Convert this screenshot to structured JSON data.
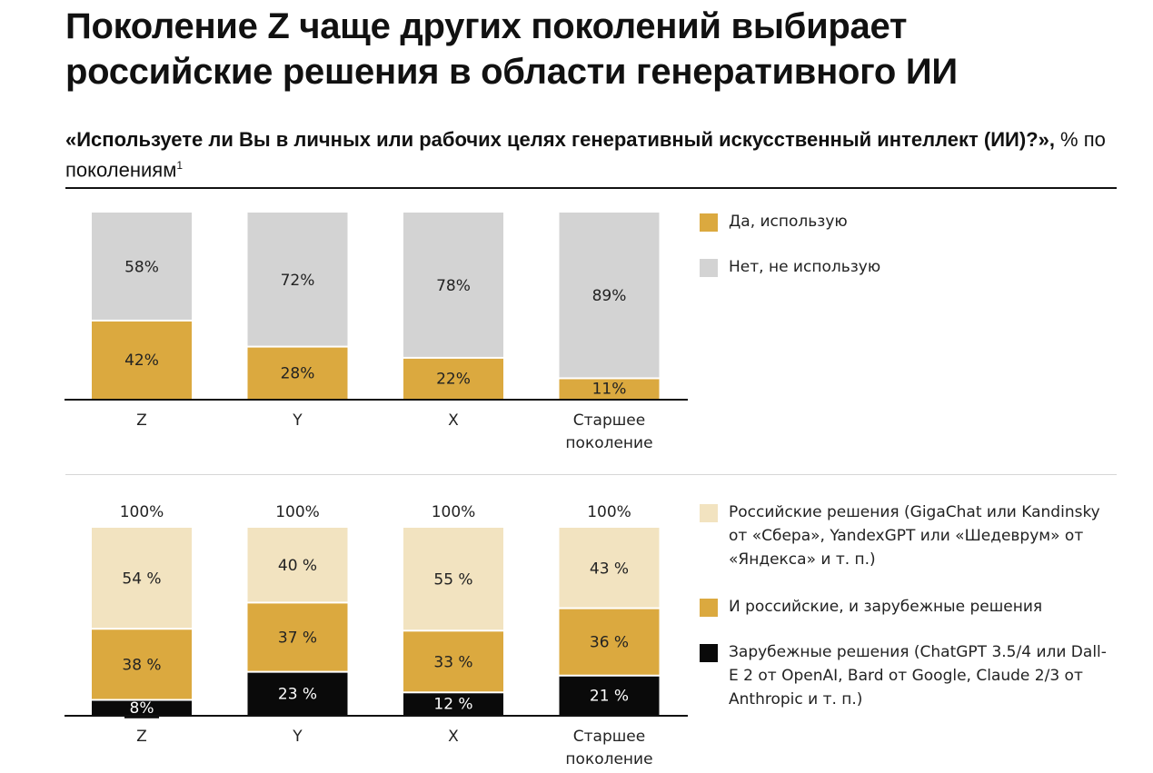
{
  "title": "Поколение Z чаще других поколений выбирает российские решения в области генеративного ИИ",
  "subtitle": {
    "question": "«Используете ли Вы в личных или рабочих целях генеративный искусственный интеллект (ИИ)?»,",
    "unit": " % по поколениям",
    "footnote": "1"
  },
  "colors": {
    "gold": "#DBA93F",
    "grey": "#D3D3D3",
    "cream": "#F2E3C0",
    "black": "#0A0A0A"
  },
  "legend_top": [
    {
      "label": "Да, использую",
      "color": "#DBA93F"
    },
    {
      "label": "Нет, не использую",
      "color": "#D3D3D3"
    }
  ],
  "legend_bottom": [
    {
      "label": "Российские решения (GigaChat или Kandinsky от «Сбера», YandexGPT или «Шедеврум» от «Яндекса» и т. п.)",
      "color": "#F2E3C0"
    },
    {
      "label": "И российские, и зарубежные решения",
      "color": "#DBA93F"
    },
    {
      "label": "Зарубежные решения (ChatGPT 3.5/4 или Dall-E 2 от OpenAI, Bard от Google, Claude 2/3 от Anthropic и т. п.)",
      "color": "#0A0A0A"
    }
  ],
  "chart_data": [
    {
      "type": "bar",
      "stacked": true,
      "categories": [
        "Z",
        "Y",
        "X",
        "Старшее поколение"
      ],
      "ylim": [
        0,
        100
      ],
      "series": [
        {
          "name": "Да, использую",
          "values": [
            42,
            28,
            22,
            11
          ],
          "labels": [
            "42%",
            "28%",
            "22%",
            "11%"
          ],
          "color": "#DBA93F",
          "text_color": "#222222"
        },
        {
          "name": "Нет, не использую",
          "values": [
            58,
            72,
            78,
            89
          ],
          "labels": [
            "58%",
            "72%",
            "78%",
            "89%"
          ],
          "color": "#D3D3D3",
          "text_color": "#222222"
        }
      ]
    },
    {
      "type": "bar",
      "stacked": true,
      "categories": [
        "Z",
        "Y",
        "X",
        "Старшее поколение"
      ],
      "ylim": [
        0,
        100
      ],
      "totals": [
        "100%",
        "100%",
        "100%",
        "100%"
      ],
      "series": [
        {
          "name": "Зарубежные решения",
          "values": [
            8,
            23,
            12,
            21
          ],
          "labels": [
            "8%",
            "23 %",
            "12 %",
            "21 %"
          ],
          "color": "#0A0A0A",
          "text_color": "#FFFFFF"
        },
        {
          "name": "И российские, и зарубежные решения",
          "values": [
            38,
            37,
            33,
            36
          ],
          "labels": [
            "38 %",
            "37 %",
            "33 %",
            "36 %"
          ],
          "color": "#DBA93F",
          "text_color": "#222222"
        },
        {
          "name": "Российские решения",
          "values": [
            54,
            40,
            55,
            43
          ],
          "labels": [
            "54 %",
            "40 %",
            "55 %",
            "43 %"
          ],
          "color": "#F2E3C0",
          "text_color": "#222222"
        }
      ]
    }
  ]
}
